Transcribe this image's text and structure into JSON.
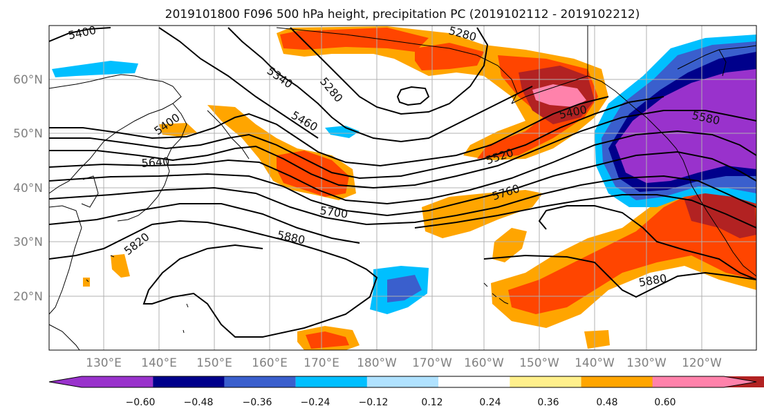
{
  "title": "2019101800 F096 500 hPa height, precipitation PC (2019102112 - 2019102212)",
  "lat_labels": [
    "60°N",
    "50°N",
    "40°N",
    "30°N",
    "20°N"
  ],
  "lon_labels": [
    "130°E",
    "140°E",
    "150°E",
    "160°E",
    "170°E",
    "180°W",
    "170°W",
    "160°W",
    "150°W",
    "140°W",
    "130°W",
    "120°W"
  ],
  "colorbar": {
    "ticks": [
      "−0.60",
      "−0.48",
      "−0.36",
      "−0.24",
      "−0.12",
      "0.12",
      "0.24",
      "0.36",
      "0.48",
      "0.60"
    ],
    "colors": [
      "#9932cc",
      "#00008b",
      "#3a5fcd",
      "#00bfff",
      "#b0e2ff",
      "#ffffff",
      "#fff08c",
      "#ffa500",
      "#ff4500",
      "#b22222",
      "#ff82ab"
    ]
  },
  "contour_labels": [
    "5400",
    "5280",
    "5340",
    "5280",
    "5460",
    "5400",
    "5400",
    "5520",
    "5580",
    "5640",
    "5700",
    "5760",
    "5820",
    "5880",
    "5880"
  ]
}
